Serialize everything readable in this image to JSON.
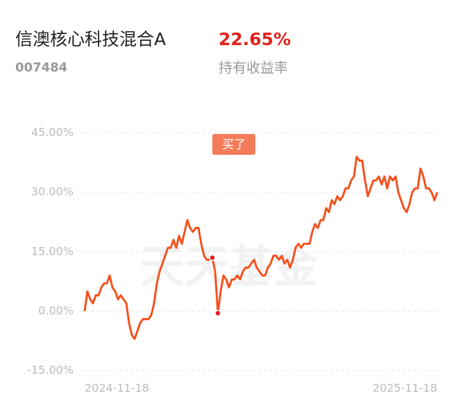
{
  "header": {
    "title": "信澳核心科技混合A",
    "code": "007484",
    "return_value": "22.65%",
    "return_label": "持有收益率"
  },
  "chart_data": {
    "type": "line",
    "annotation": "买了",
    "watermark": "天天基金",
    "categories": [
      "2024-11-18",
      null,
      null,
      null,
      null,
      null,
      null,
      null,
      null,
      null,
      null,
      null,
      null,
      null,
      null,
      null,
      null,
      null,
      null,
      null,
      null,
      null,
      null,
      null,
      null,
      null,
      null,
      null,
      null,
      null,
      null,
      null,
      null,
      null,
      null,
      null,
      null,
      null,
      null,
      null,
      null,
      null,
      null,
      null,
      null,
      null,
      null,
      null,
      null,
      null,
      null,
      null,
      null,
      null,
      null,
      null,
      null,
      null,
      null,
      null,
      null,
      null,
      null,
      null,
      null,
      null,
      null,
      null,
      null,
      null,
      null,
      null,
      null,
      null,
      null,
      null,
      null,
      null,
      null,
      null,
      null,
      null,
      null,
      null,
      null,
      null,
      null,
      null,
      null,
      null,
      null,
      null,
      null,
      null,
      null,
      null,
      null,
      null,
      null,
      null,
      null,
      null,
      null,
      null,
      null,
      null,
      null,
      null,
      null,
      null,
      null,
      null,
      null,
      null,
      null,
      null,
      null,
      null,
      null,
      null,
      null,
      null,
      null,
      null,
      null,
      null,
      null,
      "2025-11-18"
    ],
    "series": [
      {
        "name": null,
        "color": "#f4511e",
        "values": [
          0,
          5,
          3,
          2,
          4,
          4,
          6,
          7,
          7,
          9,
          6,
          5,
          3,
          4,
          3,
          2,
          -3,
          -6,
          -7,
          -5,
          -3,
          -2,
          -2,
          -2,
          -1,
          2,
          7,
          10,
          12,
          14,
          16,
          16,
          18,
          16,
          19,
          17,
          20,
          23,
          21,
          20,
          21,
          21,
          17,
          14,
          13,
          13,
          13.5,
          10,
          -0.5,
          5,
          9,
          8,
          6,
          8,
          8,
          9,
          8,
          10,
          11,
          11,
          12,
          13,
          11,
          10,
          9,
          9,
          11,
          12,
          14,
          14,
          13,
          14,
          12,
          13,
          11,
          13,
          16,
          17,
          16,
          17,
          17,
          17,
          20,
          22,
          21,
          23,
          23,
          26,
          25,
          28,
          27,
          29,
          28,
          29,
          31,
          31,
          33,
          34,
          39,
          38,
          38,
          33,
          29,
          31,
          33,
          33,
          34,
          32,
          34,
          31,
          34,
          33,
          34,
          30,
          28,
          26,
          25,
          27,
          30,
          31,
          31,
          36,
          34,
          31,
          31,
          30,
          28,
          30
        ]
      }
    ],
    "ylim": [
      -15,
      45
    ],
    "yticks": [
      {
        "value": -15,
        "label": "-15.00%"
      },
      {
        "value": 0,
        "label": "0.00%"
      },
      {
        "value": 15,
        "label": "15.00%"
      },
      {
        "value": 30,
        "label": "30.00%"
      },
      {
        "value": 45,
        "label": "45.00%"
      }
    ],
    "grid": true
  }
}
